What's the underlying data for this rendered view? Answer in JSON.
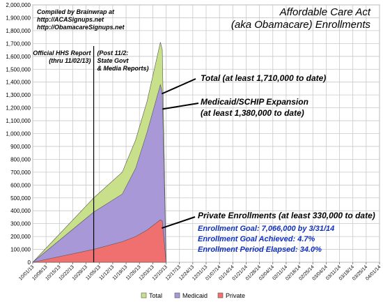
{
  "chart_data": {
    "type": "area",
    "title_lines": [
      "Affordable Care Act",
      "(aka Obamacare) Enrollments"
    ],
    "credit_lines": [
      "Compiled by Brainwrap at",
      "http://ACASignups.net",
      "http://ObamacareSignups.net"
    ],
    "ylim": [
      0,
      2000000
    ],
    "y_ticks": [
      "0",
      "100,000",
      "200,000",
      "300,000",
      "400,000",
      "500,000",
      "600,000",
      "700,000",
      "800,000",
      "900,000",
      "1,000,000",
      "1,100,000",
      "1,200,000",
      "1,300,000",
      "1,400,000",
      "1,500,000",
      "1,600,000",
      "1,700,000",
      "1,800,000",
      "1,900,000",
      "2,000,000"
    ],
    "x_ticks": [
      "10/01/13",
      "10/08/13",
      "10/15/13",
      "10/22/13",
      "10/29/13",
      "11/05/13",
      "11/12/13",
      "11/19/13",
      "11/26/13",
      "12/03/13",
      "12/10/13",
      "12/17/13",
      "12/24/13",
      "12/31/13",
      "01/07/14",
      "01/14/14",
      "01/21/14",
      "01/28/14",
      "02/04/14",
      "02/11/14",
      "02/18/14",
      "02/25/14",
      "03/04/14",
      "03/11/14",
      "03/18/14",
      "03/25/14",
      "04/01/14"
    ],
    "x_dates": [
      "10/01/13",
      "11/02/13",
      "11/17/13",
      "11/24/13",
      "11/30/13",
      "12/07/13",
      "12/08/13",
      "12/10/13"
    ],
    "series": [
      {
        "name": "Total",
        "color": "#c8e08a",
        "values": [
          0,
          500000,
          700000,
          950000,
          1250000,
          1710000,
          1650000,
          0
        ]
      },
      {
        "name": "Medicaid",
        "color": "#a898d8",
        "values": [
          0,
          390000,
          530000,
          730000,
          1010000,
          1380000,
          1320000,
          0
        ]
      },
      {
        "name": "Private",
        "color": "#f07070",
        "values": [
          0,
          100000,
          160000,
          200000,
          250000,
          330000,
          320000,
          0
        ]
      }
    ],
    "vline": {
      "date": "11/02/13",
      "label_left": [
        "Official HHS Report",
        "(thru 11/02/13)"
      ],
      "label_right": [
        "(Post 11/2:",
        "State Govt",
        "& Media Reports)"
      ]
    },
    "annotations": [
      {
        "lines": [
          "Total (at least 1,710,000 to date)"
        ]
      },
      {
        "lines": [
          "Medicaid/SCHIP Expansion",
          "(at least 1,380,000 to date)"
        ]
      },
      {
        "lines": [
          "Private Enrollments (at least 330,000 to date)"
        ]
      }
    ],
    "goal_lines": [
      "Enrollment Goal: 7,066,000 by 3/31/14",
      "Enrollment Goal Achieved: 4.7%",
      "Enrollment Period Elapsed: 34.0%"
    ],
    "legend_placement": "bottom",
    "grid": true
  }
}
